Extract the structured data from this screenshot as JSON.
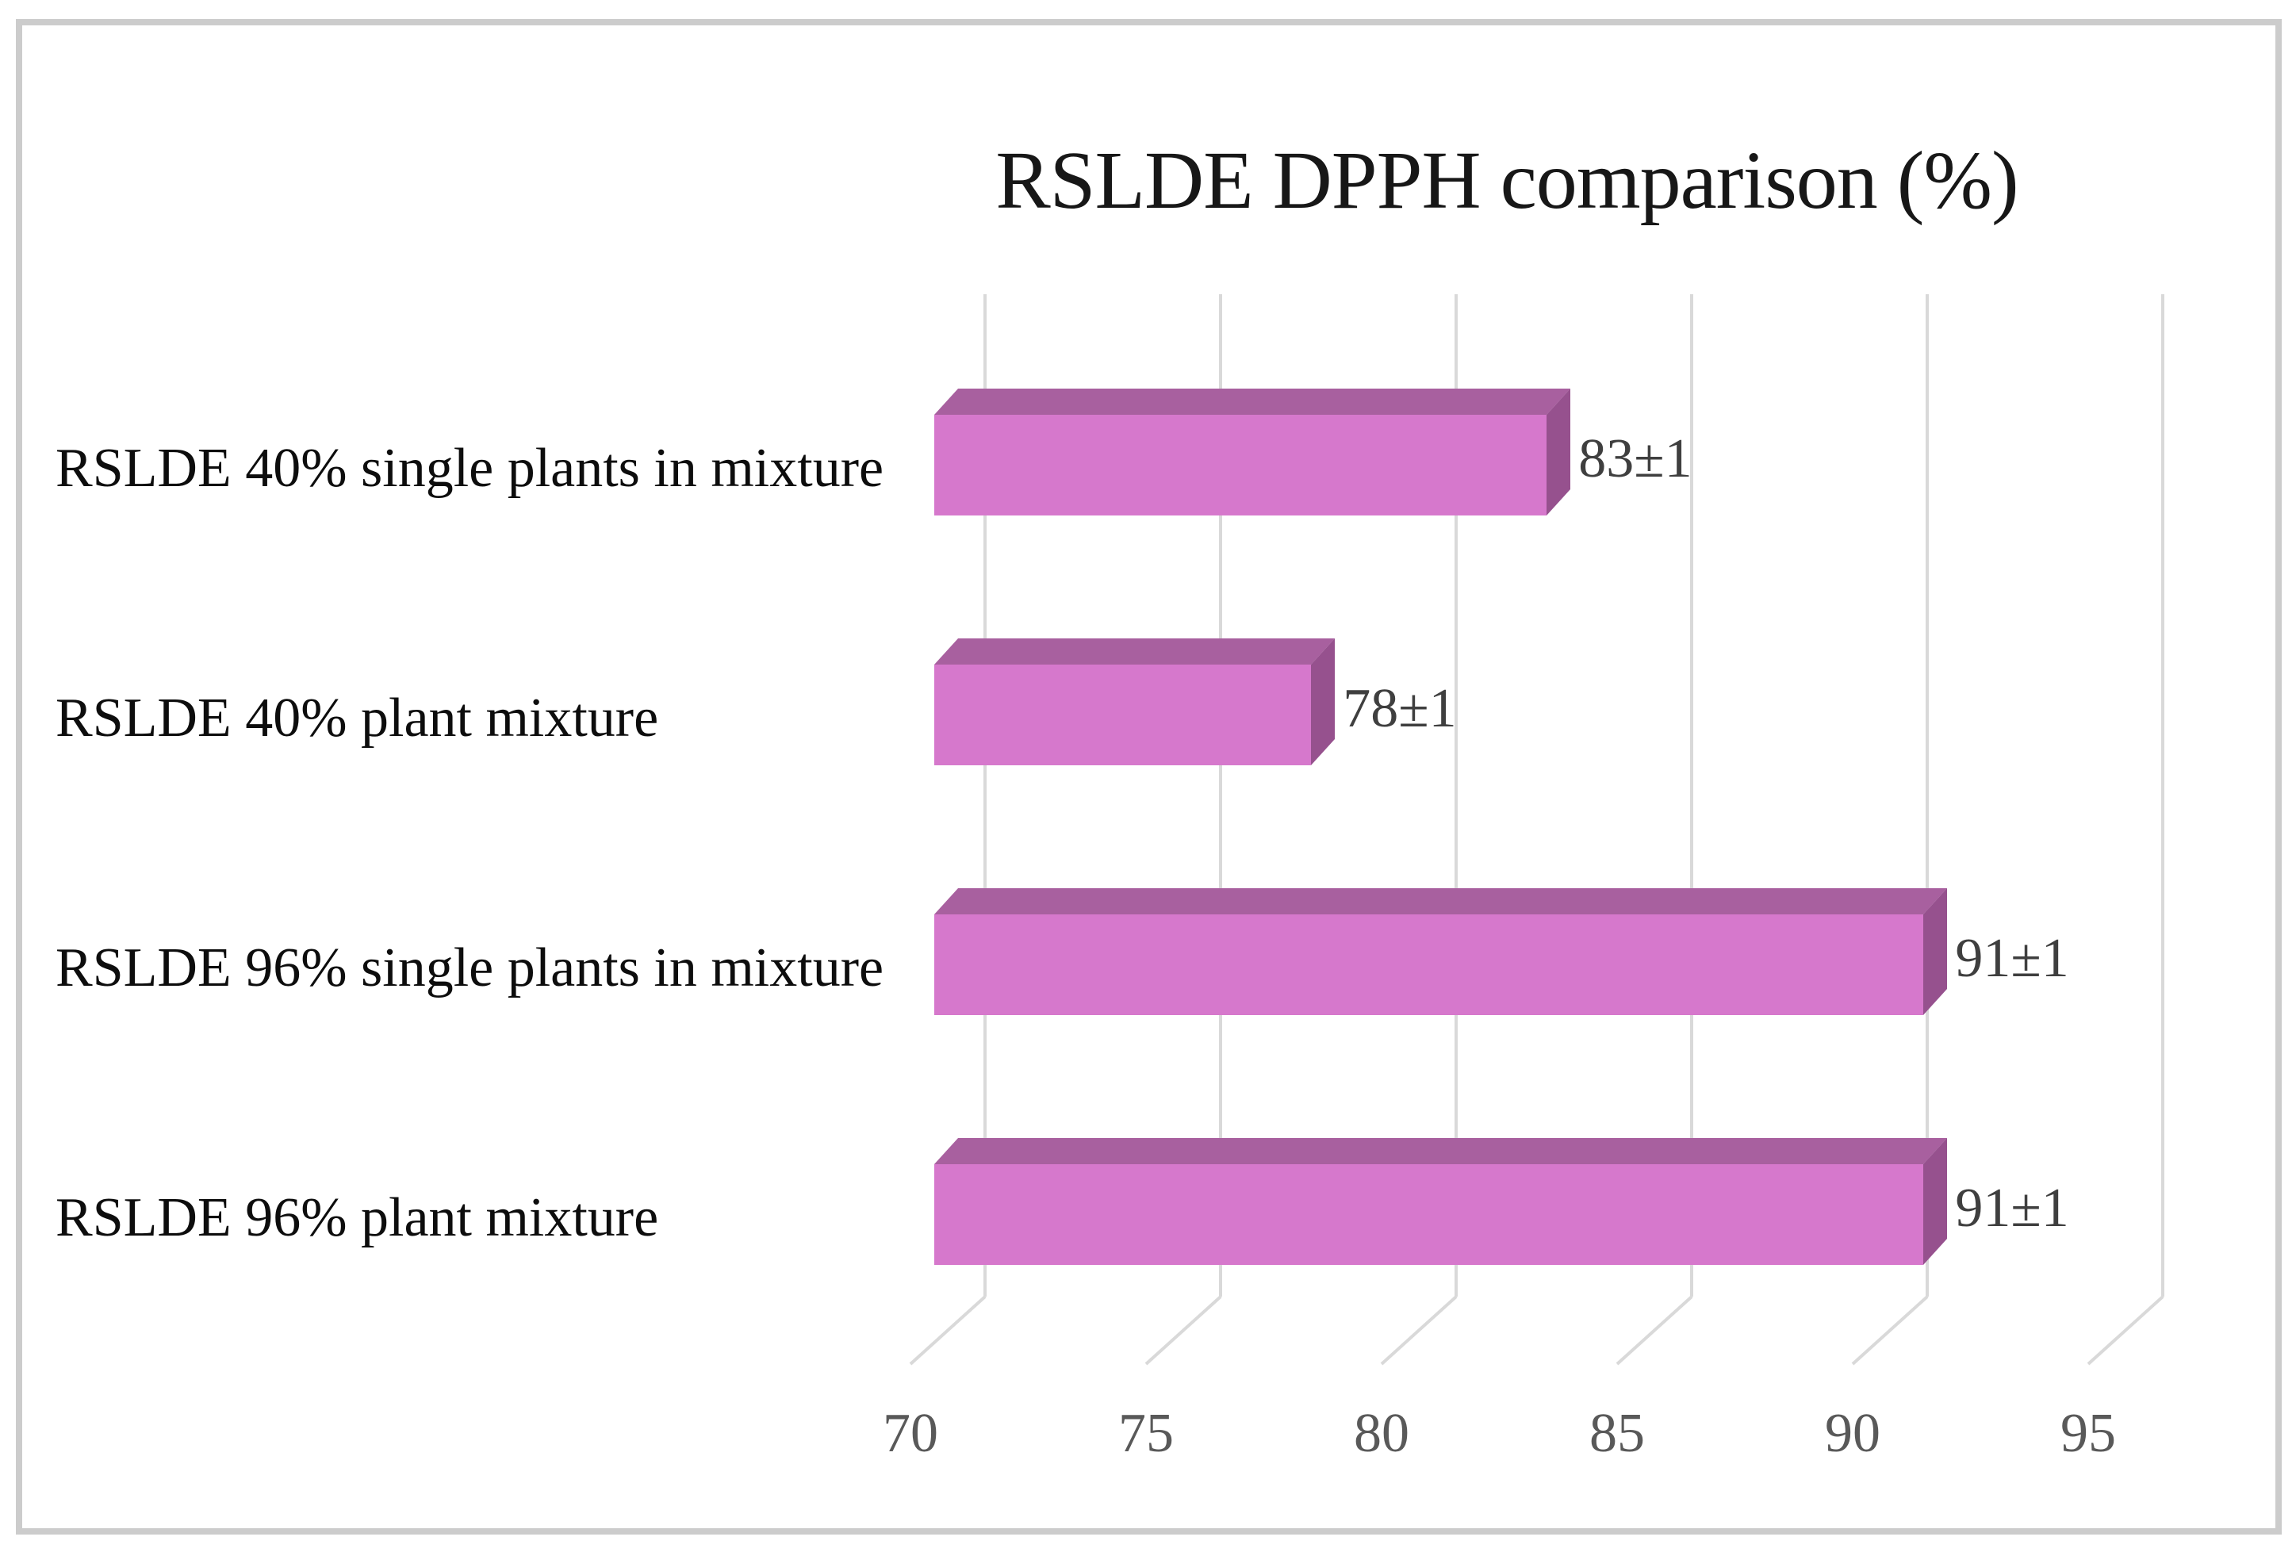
{
  "title": "RSLDE DPPH comparison (%)",
  "chart_data": {
    "type": "bar",
    "orientation": "horizontal",
    "style": "3d",
    "title": "RSLDE DPPH comparison (%)",
    "categories": [
      "RSLDE 40% single plants in mixture",
      "RSLDE 40% plant mixture",
      "RSLDE 96% single plants in mixture",
      "RSLDE 96% plant mixture"
    ],
    "values": [
      83,
      78,
      91,
      91
    ],
    "errors": [
      1,
      1,
      1,
      1
    ],
    "value_labels": [
      "83±1",
      "78±1",
      "91±1",
      "91±1"
    ],
    "xlabel": "",
    "ylabel": "",
    "xlim": [
      70,
      95
    ],
    "xticks": [
      70,
      75,
      80,
      85,
      90,
      95
    ],
    "xtick_labels": [
      "70",
      "75",
      "80",
      "85",
      "90",
      "95"
    ],
    "grid": true,
    "legend": false
  },
  "colors": {
    "bar_front": "#d678cc",
    "bar_top": "#a8609f",
    "bar_side": "#96518e",
    "gridline": "#d9d9d9",
    "tick_text": "#595959",
    "value_text": "#3f3f3f",
    "category_text": "#0d0d0d",
    "border": "#cccccc",
    "background": "#ffffff"
  }
}
